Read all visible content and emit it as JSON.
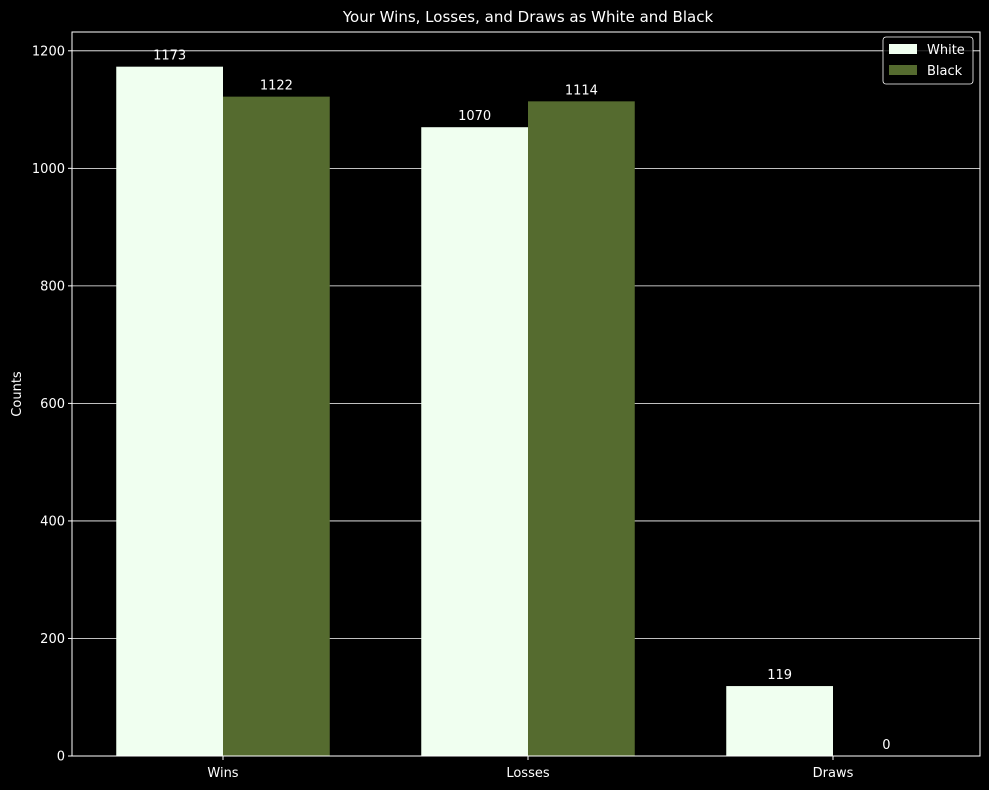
{
  "chart_data": {
    "type": "bar",
    "title": "Your Wins, Losses, and Draws as White and Black",
    "xlabel": "",
    "ylabel": "Counts",
    "categories": [
      "Wins",
      "Losses",
      "Draws"
    ],
    "series": [
      {
        "name": "White",
        "values": [
          1173,
          1070,
          119
        ],
        "color": "#f0fff0"
      },
      {
        "name": "Black",
        "values": [
          1122,
          1114,
          0
        ],
        "color": "#556b2f"
      }
    ],
    "ylim": [
      0,
      1232
    ],
    "yticks": [
      0,
      200,
      400,
      600,
      800,
      1000,
      1200
    ],
    "grid": true,
    "legend": "top-right",
    "background_color": "#000000",
    "text_color": "#ffffff"
  }
}
